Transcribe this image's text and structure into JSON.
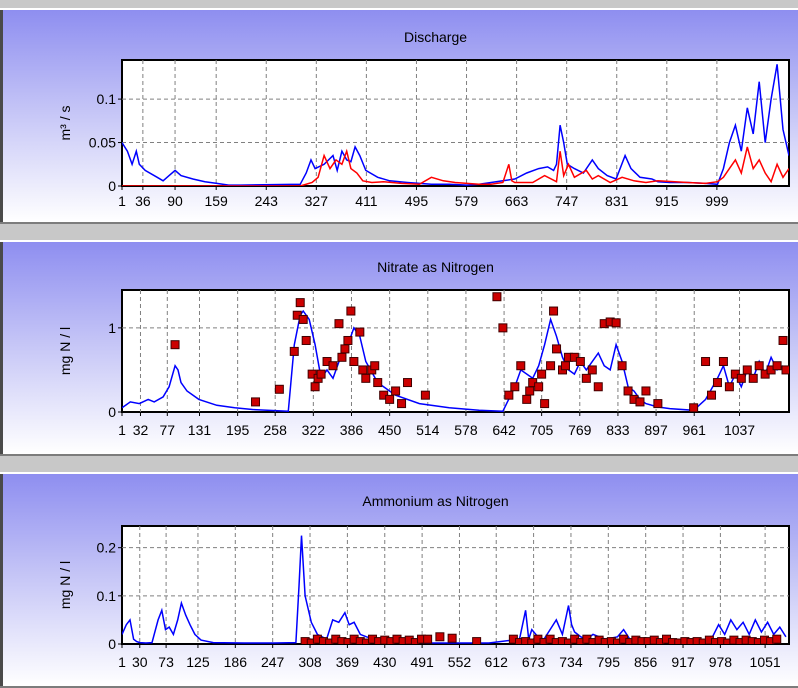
{
  "chart_data": [
    {
      "type": "line",
      "title": "Discharge",
      "ylabel": "m³ / s",
      "xlabel": "",
      "ylim": [
        0,
        0.145
      ],
      "xlim": [
        1,
        1120
      ],
      "yticks": [
        0,
        0.05,
        0.1
      ],
      "ytick_labels": [
        "0",
        "0.05",
        "0.1"
      ],
      "xtick_labels": [
        "1",
        "36",
        "90",
        "159",
        "243",
        "327",
        "411",
        "495",
        "579",
        "663",
        "747",
        "831",
        "915",
        "999"
      ],
      "xtick_values": [
        1,
        36,
        90,
        159,
        243,
        327,
        411,
        495,
        579,
        663,
        747,
        831,
        915,
        999
      ],
      "grid": true,
      "colors": {
        "series_blue": "#0000ff",
        "series_red": "#ff0000"
      },
      "series": [
        {
          "color": "#0000ff",
          "x": [
            1,
            10,
            18,
            25,
            30,
            40,
            60,
            70,
            80,
            90,
            100,
            120,
            140,
            160,
            180,
            200,
            300,
            310,
            318,
            325,
            340,
            355,
            362,
            370,
            378,
            385,
            392,
            400,
            410,
            430,
            450,
            480,
            500,
            520,
            550,
            580,
            600,
            620,
            640,
            660,
            680,
            700,
            715,
            725,
            730,
            736,
            742,
            748,
            760,
            775,
            790,
            800,
            815,
            830,
            845,
            855,
            870,
            890,
            900,
            920,
            950,
            980,
            1000,
            1010,
            1020,
            1030,
            1040,
            1050,
            1060,
            1070,
            1080,
            1090,
            1100,
            1110,
            1120
          ],
          "y": [
            0.05,
            0.04,
            0.025,
            0.04,
            0.025,
            0.018,
            0.01,
            0.006,
            0.012,
            0.018,
            0.012,
            0.008,
            0.005,
            0.003,
            0.001,
            0.001,
            0.002,
            0.015,
            0.03,
            0.02,
            0.025,
            0.035,
            0.018,
            0.04,
            0.03,
            0.028,
            0.045,
            0.035,
            0.018,
            0.01,
            0.006,
            0.004,
            0.003,
            0.002,
            0.002,
            0.001,
            0.002,
            0.004,
            0.006,
            0.008,
            0.015,
            0.02,
            0.022,
            0.018,
            0.025,
            0.07,
            0.05,
            0.025,
            0.02,
            0.015,
            0.03,
            0.02,
            0.012,
            0.008,
            0.035,
            0.02,
            0.01,
            0.008,
            0.005,
            0.004,
            0.004,
            0.003,
            0.002,
            0.02,
            0.05,
            0.07,
            0.04,
            0.09,
            0.06,
            0.12,
            0.05,
            0.1,
            0.14,
            0.065,
            0.035
          ]
        },
        {
          "color": "#ff0000",
          "x": [
            1,
            300,
            320,
            330,
            340,
            350,
            360,
            370,
            378,
            385,
            395,
            405,
            420,
            440,
            470,
            500,
            520,
            540,
            560,
            600,
            620,
            640,
            650,
            655,
            660,
            690,
            710,
            730,
            736,
            742,
            750,
            760,
            780,
            790,
            800,
            820,
            840,
            860,
            880,
            900,
            950,
            980,
            1000,
            1010,
            1020,
            1030,
            1040,
            1050,
            1060,
            1070,
            1080,
            1090,
            1100,
            1110,
            1120
          ],
          "y": [
            0,
            0,
            0.004,
            0.01,
            0.035,
            0.02,
            0.03,
            0.025,
            0.04,
            0.02,
            0.015,
            0.006,
            0.004,
            0.005,
            0.003,
            0.002,
            0.01,
            0.006,
            0.004,
            0.002,
            0.002,
            0.004,
            0.025,
            0.006,
            0.004,
            0.004,
            0.012,
            0.005,
            0.04,
            0.012,
            0.025,
            0.01,
            0.018,
            0.008,
            0.012,
            0.004,
            0.01,
            0.006,
            0.004,
            0.006,
            0.004,
            0.003,
            0.005,
            0.01,
            0.02,
            0.03,
            0.015,
            0.045,
            0.02,
            0.03,
            0.015,
            0.005,
            0.025,
            0.01,
            0.02
          ]
        }
      ]
    },
    {
      "type": "line",
      "title": "Nitrate as Nitrogen",
      "ylabel": "mg N / l",
      "xlabel": "",
      "ylim": [
        0,
        1.45
      ],
      "xlim": [
        1,
        1120
      ],
      "yticks": [
        0,
        1
      ],
      "ytick_labels": [
        "0",
        "1"
      ],
      "xtick_labels": [
        "1",
        "32",
        "77",
        "131",
        "195",
        "258",
        "322",
        "386",
        "450",
        "514",
        "578",
        "642",
        "705",
        "769",
        "833",
        "897",
        "961",
        "1037"
      ],
      "xtick_values": [
        1,
        32,
        77,
        131,
        195,
        258,
        322,
        386,
        450,
        514,
        578,
        642,
        705,
        769,
        833,
        897,
        961,
        1037
      ],
      "grid": true,
      "colors": {
        "line": "#0000ff",
        "markers": "#cc0000"
      },
      "series": [
        {
          "color": "#0000ff",
          "x": [
            1,
            15,
            30,
            45,
            55,
            70,
            80,
            90,
            95,
            100,
            110,
            130,
            160,
            190,
            220,
            280,
            290,
            300,
            305,
            315,
            325,
            335,
            345,
            355,
            365,
            380,
            390,
            400,
            410,
            430,
            460,
            500,
            550,
            600,
            640,
            660,
            670,
            690,
            700,
            710,
            720,
            730,
            740,
            750,
            760,
            770,
            780,
            800,
            810,
            820,
            830,
            840,
            850,
            860,
            870,
            880,
            900,
            920,
            960,
            980,
            1000,
            1010,
            1020,
            1030,
            1040,
            1050,
            1060,
            1070,
            1080,
            1090,
            1100,
            1110
          ],
          "y": [
            0.05,
            0.12,
            0.1,
            0.15,
            0.12,
            0.18,
            0.3,
            0.55,
            0.5,
            0.35,
            0.25,
            0.15,
            0.08,
            0.05,
            0.03,
            0.01,
            0.8,
            1.15,
            1.2,
            1.1,
            0.8,
            0.4,
            0.5,
            0.4,
            0.6,
            0.8,
            1.0,
            0.9,
            0.6,
            0.35,
            0.2,
            0.1,
            0.05,
            0.02,
            0.01,
            0.3,
            0.5,
            0.4,
            0.55,
            0.8,
            1.1,
            0.9,
            0.65,
            0.5,
            0.45,
            0.6,
            0.5,
            0.7,
            0.55,
            0.5,
            0.8,
            0.6,
            0.3,
            0.25,
            0.15,
            0.1,
            0.06,
            0.04,
            0.02,
            0.15,
            0.4,
            0.55,
            0.3,
            0.45,
            0.3,
            0.5,
            0.4,
            0.6,
            0.45,
            0.65,
            0.5,
            0.55
          ]
        },
        {
          "color": "#cc0000",
          "style": "markers",
          "x": [
            90,
            225,
            265,
            290,
            295,
            300,
            305,
            310,
            320,
            325,
            330,
            335,
            345,
            355,
            365,
            370,
            375,
            380,
            385,
            390,
            400,
            405,
            410,
            420,
            425,
            430,
            440,
            450,
            460,
            470,
            480,
            510,
            630,
            640,
            650,
            660,
            670,
            680,
            685,
            690,
            700,
            705,
            710,
            720,
            725,
            730,
            740,
            745,
            750,
            760,
            770,
            780,
            790,
            800,
            810,
            820,
            830,
            840,
            850,
            860,
            870,
            880,
            900,
            960,
            980,
            990,
            1000,
            1010,
            1020,
            1030,
            1040,
            1050,
            1060,
            1070,
            1080,
            1090,
            1100,
            1110,
            1115
          ],
          "y": [
            0.8,
            0.12,
            0.27,
            0.72,
            1.15,
            1.3,
            1.1,
            0.85,
            0.45,
            0.3,
            0.4,
            0.45,
            0.6,
            0.55,
            1.05,
            0.65,
            0.75,
            0.85,
            1.2,
            0.6,
            0.95,
            0.5,
            0.4,
            0.5,
            0.55,
            0.35,
            0.2,
            0.15,
            0.25,
            0.1,
            0.35,
            0.2,
            1.37,
            1.0,
            0.2,
            0.3,
            0.55,
            0.15,
            0.25,
            0.35,
            0.3,
            0.45,
            0.1,
            0.55,
            1.2,
            0.75,
            0.5,
            0.55,
            0.65,
            0.65,
            0.6,
            0.4,
            0.5,
            0.3,
            1.05,
            1.07,
            1.06,
            0.55,
            0.25,
            0.15,
            0.12,
            0.25,
            0.1,
            0.05,
            0.6,
            0.2,
            0.35,
            0.6,
            0.3,
            0.45,
            0.4,
            0.5,
            0.4,
            0.55,
            0.45,
            0.5,
            0.55,
            0.85,
            0.5
          ]
        }
      ]
    },
    {
      "type": "line",
      "title": "Ammonium as Nitrogen",
      "ylabel": "mg N / l",
      "xlabel": "",
      "ylim": [
        0,
        0.245
      ],
      "xlim": [
        1,
        1090
      ],
      "yticks": [
        0,
        0.1,
        0.2
      ],
      "ytick_labels": [
        "0",
        "0.1",
        "0.2"
      ],
      "xtick_labels": [
        "1",
        "30",
        "73",
        "125",
        "186",
        "247",
        "308",
        "369",
        "430",
        "491",
        "552",
        "612",
        "673",
        "734",
        "795",
        "856",
        "917",
        "978",
        "1051"
      ],
      "xtick_values": [
        1,
        30,
        73,
        125,
        186,
        247,
        308,
        369,
        430,
        491,
        552,
        612,
        673,
        734,
        795,
        856,
        917,
        978,
        1051
      ],
      "grid": true,
      "colors": {
        "line": "#0000ff",
        "markers": "#cc0000"
      },
      "series": [
        {
          "color": "#0000ff",
          "x": [
            1,
            8,
            14,
            20,
            25,
            30,
            40,
            50,
            60,
            66,
            72,
            78,
            85,
            92,
            98,
            105,
            112,
            120,
            130,
            150,
            200,
            250,
            285,
            290,
            294,
            300,
            310,
            320,
            335,
            345,
            355,
            365,
            372,
            380,
            390,
            400,
            420,
            450,
            500,
            550,
            600,
            650,
            660,
            665,
            670,
            680,
            690,
            700,
            710,
            720,
            730,
            735,
            740,
            750,
            760,
            770,
            790,
            810,
            820,
            830,
            840,
            860,
            900,
            960,
            975,
            985,
            995,
            1005,
            1015,
            1025,
            1035,
            1045,
            1055,
            1065,
            1075,
            1085
          ],
          "y": [
            0.02,
            0.04,
            0.05,
            0.01,
            0.005,
            0.003,
            0.002,
            0.003,
            0.05,
            0.07,
            0.03,
            0.035,
            0.02,
            0.05,
            0.085,
            0.06,
            0.04,
            0.02,
            0.008,
            0.003,
            0.002,
            0.002,
            0.003,
            0.12,
            0.225,
            0.1,
            0.045,
            0.02,
            0.01,
            0.05,
            0.045,
            0.065,
            0.04,
            0.045,
            0.02,
            0.015,
            0.008,
            0.004,
            0.002,
            0.002,
            0.002,
            0.01,
            0.07,
            0.01,
            0.03,
            0.015,
            0.01,
            0.03,
            0.05,
            0.02,
            0.08,
            0.04,
            0.025,
            0.015,
            0.01,
            0.02,
            0.01,
            0.015,
            0.03,
            0.01,
            0.005,
            0.004,
            0.002,
            0.002,
            0.04,
            0.02,
            0.05,
            0.03,
            0.045,
            0.02,
            0.05,
            0.025,
            0.045,
            0.02,
            0.035,
            0.015
          ]
        },
        {
          "color": "#cc0000",
          "style": "markers",
          "x": [
            300,
            310,
            320,
            330,
            340,
            350,
            360,
            370,
            380,
            390,
            400,
            410,
            420,
            430,
            440,
            450,
            460,
            470,
            480,
            490,
            500,
            520,
            540,
            580,
            640,
            650,
            660,
            670,
            680,
            690,
            700,
            710,
            720,
            730,
            740,
            750,
            760,
            770,
            780,
            790,
            800,
            810,
            820,
            830,
            840,
            850,
            860,
            870,
            880,
            890,
            900,
            910,
            920,
            930,
            940,
            950,
            960,
            970,
            980,
            990,
            1000,
            1010,
            1020,
            1030,
            1040,
            1050,
            1060,
            1070
          ],
          "y": [
            0.005,
            0.002,
            0.01,
            0.005,
            0.002,
            0.01,
            0.005,
            0.003,
            0.01,
            0.005,
            0.002,
            0.01,
            0.005,
            0.008,
            0.005,
            0.01,
            0.005,
            0.008,
            0.003,
            0.01,
            0.01,
            0.015,
            0.012,
            0.005,
            0.01,
            0.003,
            0.005,
            0.002,
            0.01,
            0.003,
            0.01,
            0.003,
            0.005,
            0.002,
            0.01,
            0.003,
            0.01,
            0.003,
            0.008,
            0.003,
            0.005,
            0.002,
            0.01,
            0.003,
            0.008,
            0.005,
            0.005,
            0.008,
            0.003,
            0.01,
            0.003,
            0.002,
            0.005,
            0.003,
            0.005,
            0.002,
            0.008,
            0.003,
            0.005,
            0.002,
            0.008,
            0.003,
            0.008,
            0.005,
            0.003,
            0.008,
            0.005,
            0.01
          ]
        }
      ]
    }
  ]
}
